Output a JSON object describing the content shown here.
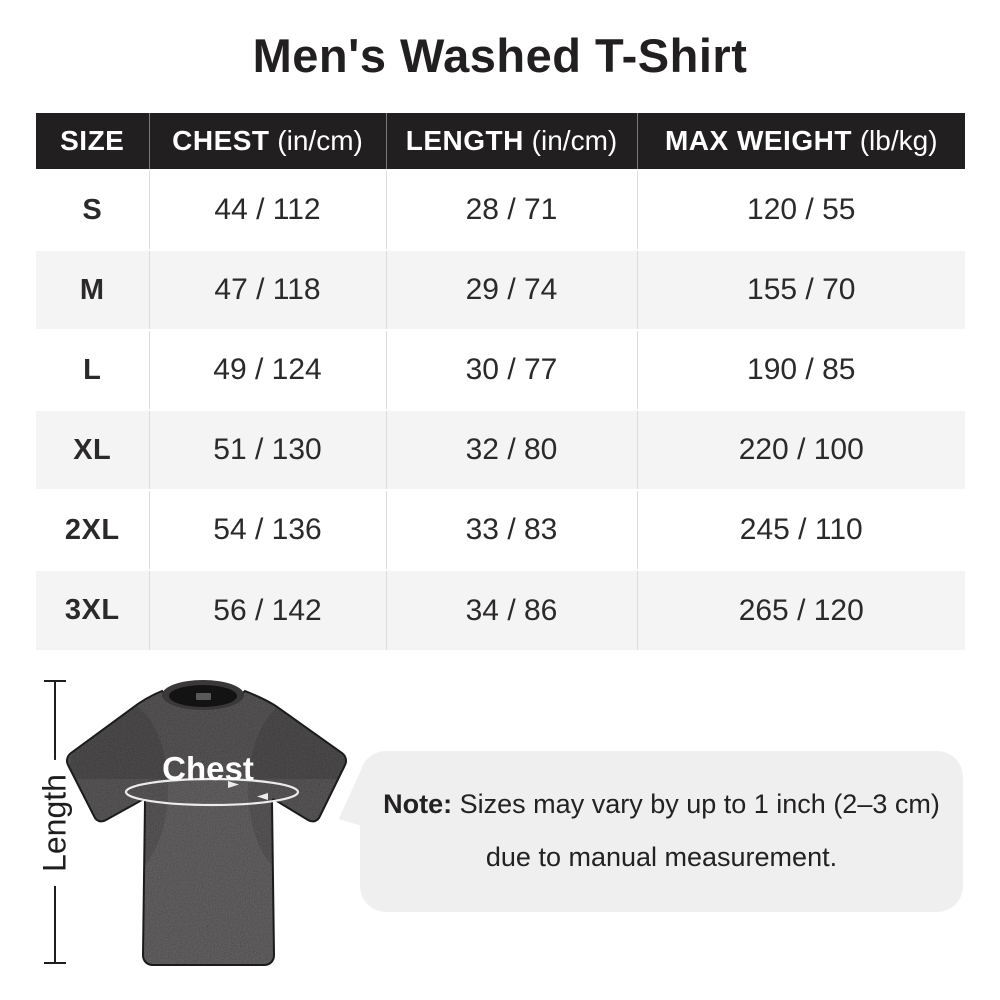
{
  "title": "Men's Washed T-Shirt",
  "table": {
    "columns": [
      {
        "label": "SIZE",
        "unit": ""
      },
      {
        "label": "CHEST",
        "unit": "(in/cm)"
      },
      {
        "label": "LENGTH",
        "unit": "(in/cm)"
      },
      {
        "label": "MAX WEIGHT",
        "unit": "(lb/kg)"
      }
    ],
    "rows": [
      [
        "S",
        "44 / 112",
        "28 / 71",
        "120 / 55"
      ],
      [
        "M",
        "47 / 118",
        "29 / 74",
        "155 / 70"
      ],
      [
        "L",
        "49 / 124",
        "30 / 77",
        "190 / 85"
      ],
      [
        "XL",
        "51 / 130",
        "32 / 80",
        "220 / 100"
      ],
      [
        "2XL",
        "54 / 136",
        "33 / 83",
        "245 / 110"
      ],
      [
        "3XL",
        "56 / 142",
        "34 / 86",
        "265 / 120"
      ]
    ]
  },
  "diagram": {
    "length_label": "Length",
    "chest_label": "Chest"
  },
  "note": {
    "prefix": "Note:",
    "line1_rest": " Sizes may vary by up to 1 inch (2–3 cm)",
    "line2": "due to manual measurement."
  },
  "colors": {
    "header_bg": "#211f20",
    "header_divider": "#7c7a7b",
    "body_divider": "#dcdcdc",
    "row_alt_bg": "#f4f4f4",
    "text_dark": "#2b292a",
    "bubble_bg": "#efefef",
    "line_color": "#1e1e1e"
  }
}
